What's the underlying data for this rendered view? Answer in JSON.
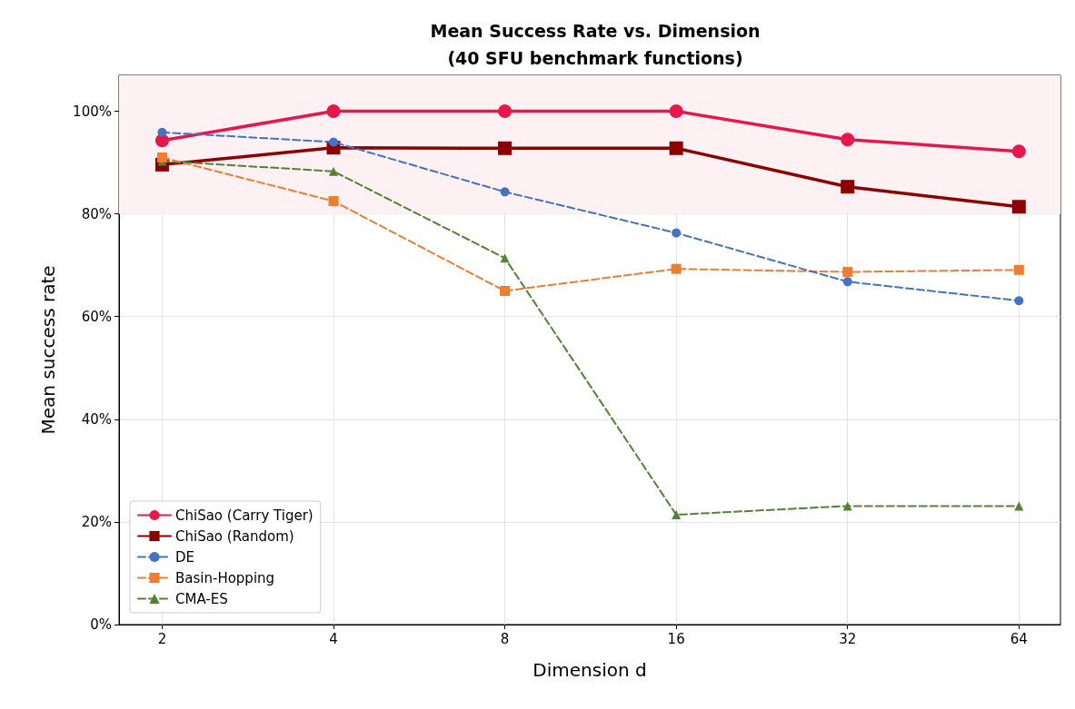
{
  "chart_data": {
    "type": "line",
    "title": "Mean Success Rate vs. Dimension\n(40 SFU benchmark functions)",
    "xlabel": "Dimension d",
    "ylabel": "Mean success rate",
    "x": [
      2,
      4,
      8,
      16,
      32,
      64
    ],
    "series": [
      {
        "name": "ChiSao (Carry Tiger)",
        "color": "#e8174b",
        "marker": "circle",
        "line_style": "solid",
        "values": [
          94.3,
          100,
          100,
          100,
          94.5,
          92.2
        ]
      },
      {
        "name": "ChiSao (Random)",
        "color": "#8b0000",
        "marker": "square",
        "line_style": "solid",
        "values": [
          89.6,
          92.9,
          92.8,
          92.8,
          85.3,
          81.4
        ]
      },
      {
        "name": "DE",
        "color": "#4472c4",
        "marker": "circle",
        "line_style": "dashed",
        "values": [
          95.9,
          94.0,
          84.3,
          76.3,
          66.8,
          63.1
        ]
      },
      {
        "name": "Basin-Hopping",
        "color": "#ed7d31",
        "marker": "square",
        "line_style": "dashed",
        "values": [
          91.0,
          82.5,
          65.0,
          69.3,
          68.7,
          69.1
        ]
      },
      {
        "name": "CMA-ES",
        "color": "#548235",
        "marker": "triangle",
        "line_style": "dashed",
        "values": [
          90.3,
          88.3,
          71.4,
          21.4,
          23.1,
          23.1
        ]
      }
    ],
    "log": "x",
    "xlim": [
      1.68,
      75.7
    ],
    "xticks": [
      2,
      4,
      8,
      16,
      32,
      64
    ],
    "ylim": [
      0,
      107
    ],
    "yticks": [
      {
        "value": 0,
        "label": "0%"
      },
      {
        "value": 20,
        "label": "20%"
      },
      {
        "value": 40,
        "label": "40%"
      },
      {
        "value": 60,
        "label": "60%"
      },
      {
        "value": 80,
        "label": "80%"
      },
      {
        "value": 100,
        "label": "100%"
      }
    ],
    "bands": [
      {
        "axis": "y",
        "from": 80,
        "to": 107,
        "color": "#fdf1f3"
      }
    ],
    "grid": true,
    "legend": "bottom left"
  }
}
